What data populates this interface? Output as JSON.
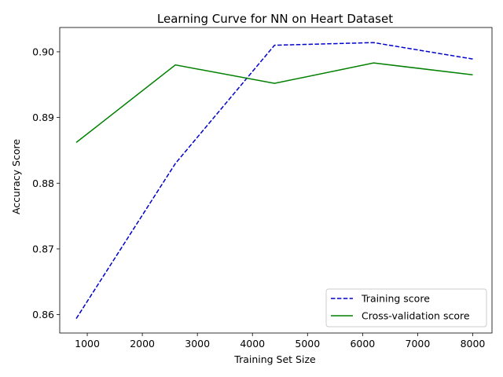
{
  "chart_data": {
    "type": "line",
    "title": "Learning Curve for NN on Heart Dataset",
    "xlabel": "Training Set Size",
    "ylabel": "Accuracy Score",
    "xlim": [
      500,
      8350
    ],
    "ylim": [
      0.8572,
      0.9037
    ],
    "xticks": [
      "1000",
      "2000",
      "3000",
      "4000",
      "5000",
      "6000",
      "7000",
      "8000"
    ],
    "yticks": [
      "0.86",
      "0.87",
      "0.88",
      "0.89",
      "0.90"
    ],
    "x": [
      800,
      2600,
      4400,
      6200,
      8000
    ],
    "series": [
      {
        "name": "Training score",
        "values": [
          0.8594,
          0.883,
          0.901,
          0.9014,
          0.8989
        ],
        "color": "#0000cc",
        "style": "dashed"
      },
      {
        "name": "Cross-validation score",
        "values": [
          0.8862,
          0.898,
          0.8952,
          0.8983,
          0.8965
        ],
        "color": "#008000",
        "style": "solid"
      }
    ],
    "legend_position": "lower-right",
    "grid": false
  }
}
